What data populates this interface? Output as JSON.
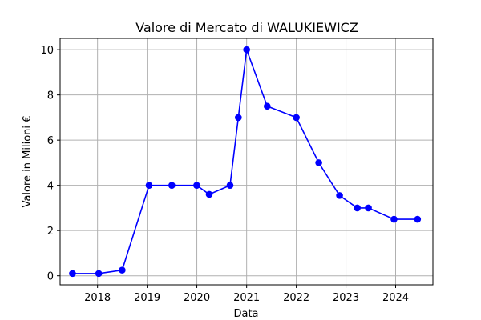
{
  "chart_data": {
    "type": "line",
    "title": "Valore di Mercato di WALUKIEWICZ",
    "xlabel": "Data",
    "ylabel": "Valore in Milioni €",
    "x_type": "date",
    "xlim": [
      "2017-04-01",
      "2024-10-01"
    ],
    "ylim": [
      -0.4,
      10.5
    ],
    "x_ticks": [
      "2018-01-01",
      "2019-01-01",
      "2020-01-01",
      "2021-01-01",
      "2022-01-01",
      "2023-01-01",
      "2024-01-01"
    ],
    "x_tick_labels": [
      "2018",
      "2019",
      "2020",
      "2021",
      "2022",
      "2023",
      "2024"
    ],
    "y_ticks": [
      0,
      2,
      4,
      6,
      8,
      10
    ],
    "y_tick_labels": [
      "0",
      "2",
      "4",
      "6",
      "8",
      "10"
    ],
    "grid": true,
    "series": [
      {
        "color": "#0000ff",
        "marker": "circle",
        "points": [
          {
            "x": "2017-07-01",
            "y": 0.1
          },
          {
            "x": "2018-01-10",
            "y": 0.1
          },
          {
            "x": "2018-07-01",
            "y": 0.25
          },
          {
            "x": "2019-01-15",
            "y": 4
          },
          {
            "x": "2019-07-01",
            "y": 4
          },
          {
            "x": "2019-12-31",
            "y": 4
          },
          {
            "x": "2020-04-01",
            "y": 3.6
          },
          {
            "x": "2020-09-01",
            "y": 4
          },
          {
            "x": "2020-11-01",
            "y": 7
          },
          {
            "x": "2021-01-01",
            "y": 10
          },
          {
            "x": "2021-06-01",
            "y": 7.5
          },
          {
            "x": "2022-01-01",
            "y": 7
          },
          {
            "x": "2022-06-15",
            "y": 5
          },
          {
            "x": "2022-11-15",
            "y": 3.55
          },
          {
            "x": "2023-03-25",
            "y": 3
          },
          {
            "x": "2023-06-15",
            "y": 3
          },
          {
            "x": "2023-12-20",
            "y": 2.5
          },
          {
            "x": "2024-06-10",
            "y": 2.5
          }
        ]
      }
    ]
  }
}
